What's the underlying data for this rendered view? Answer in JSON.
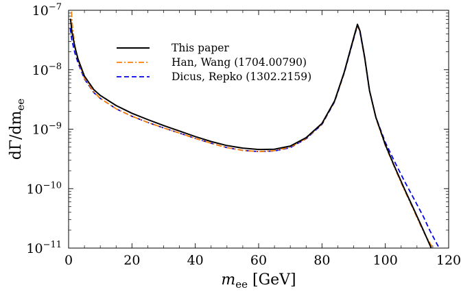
{
  "chart_data": {
    "type": "line",
    "title": "",
    "xlabel_main": "m",
    "xlabel_sub": "ee",
    "xlabel_unit": " [GeV]",
    "ylabel_main": "dΓ/dm",
    "ylabel_sub": "ee",
    "xlim": [
      0,
      120
    ],
    "ylim": [
      1e-11,
      1e-07
    ],
    "yscale": "log",
    "grid": false,
    "legend_position": "top-left",
    "x_ticks": [
      0,
      20,
      40,
      60,
      80,
      100,
      120
    ],
    "y_ticks": [
      {
        "value": 1e-11,
        "base": "10",
        "exp": "−11"
      },
      {
        "value": 1e-10,
        "base": "10",
        "exp": "−10"
      },
      {
        "value": 1e-09,
        "base": "10",
        "exp": "−9"
      },
      {
        "value": 1e-08,
        "base": "10",
        "exp": "−8"
      },
      {
        "value": 1e-07,
        "base": "10",
        "exp": "−7"
      }
    ],
    "series": [
      {
        "name": "This paper",
        "color": "#000000",
        "style": "solid",
        "points": [
          [
            0.6,
            7.2e-08
          ],
          [
            1,
            4.5e-08
          ],
          [
            2,
            2.4e-08
          ],
          [
            3,
            1.5e-08
          ],
          [
            5,
            7.8e-09
          ],
          [
            8,
            4.6e-09
          ],
          [
            10,
            3.7e-09
          ],
          [
            15,
            2.5e-09
          ],
          [
            20,
            1.85e-09
          ],
          [
            25,
            1.45e-09
          ],
          [
            30,
            1.15e-09
          ],
          [
            35,
            9.3e-10
          ],
          [
            40,
            7.5e-10
          ],
          [
            45,
            6.2e-10
          ],
          [
            50,
            5.3e-10
          ],
          [
            55,
            4.8e-10
          ],
          [
            60,
            4.55e-10
          ],
          [
            65,
            4.6e-10
          ],
          [
            70,
            5.2e-10
          ],
          [
            75,
            7.2e-10
          ],
          [
            80,
            1.25e-09
          ],
          [
            84,
            3e-09
          ],
          [
            87,
            9e-09
          ],
          [
            89,
            2.2e-08
          ],
          [
            90.5,
            4.3e-08
          ],
          [
            91.2,
            5.8e-08
          ],
          [
            92,
            4.5e-08
          ],
          [
            93.5,
            1.6e-08
          ],
          [
            95,
            4.5e-09
          ],
          [
            97,
            1.6e-09
          ],
          [
            100,
            5.5e-10
          ],
          [
            103,
            2.3e-10
          ],
          [
            106,
            1e-10
          ],
          [
            109,
            4.5e-11
          ],
          [
            112,
            2e-11
          ],
          [
            114.5,
            1e-11
          ]
        ]
      },
      {
        "name": "Han, Wang (1704.00790)",
        "color": "#ff8000",
        "style": "dashdot",
        "points": [
          [
            0.9,
            9.5e-08
          ],
          [
            1.2,
            5.5e-08
          ],
          [
            2,
            2.5e-08
          ],
          [
            3,
            1.45e-08
          ],
          [
            5,
            7.2e-09
          ],
          [
            8,
            4.2e-09
          ],
          [
            10,
            3.3e-09
          ],
          [
            15,
            2.2e-09
          ],
          [
            20,
            1.65e-09
          ],
          [
            25,
            1.3e-09
          ],
          [
            30,
            1.05e-09
          ],
          [
            35,
            8.6e-10
          ],
          [
            40,
            7e-10
          ],
          [
            45,
            5.8e-10
          ],
          [
            50,
            4.9e-10
          ],
          [
            55,
            4.4e-10
          ],
          [
            60,
            4.2e-10
          ],
          [
            65,
            4.35e-10
          ],
          [
            70,
            5e-10
          ],
          [
            75,
            7e-10
          ],
          [
            80,
            1.22e-09
          ],
          [
            84,
            2.95e-09
          ],
          [
            87,
            8.8e-09
          ],
          [
            89,
            2.15e-08
          ],
          [
            90.5,
            4.2e-08
          ],
          [
            91.2,
            5.6e-08
          ],
          [
            92,
            4.4e-08
          ],
          [
            93.5,
            1.55e-08
          ],
          [
            95,
            4.4e-09
          ],
          [
            97,
            1.55e-09
          ],
          [
            100,
            5.3e-10
          ],
          [
            103,
            2.2e-10
          ],
          [
            106,
            9.5e-11
          ],
          [
            109,
            4.3e-11
          ],
          [
            112,
            1.9e-11
          ],
          [
            115,
            1e-11
          ]
        ]
      },
      {
        "name": "Dicus, Repko (1302.2159)",
        "color": "#0000ee",
        "style": "dashed",
        "points": [
          [
            0.5,
            5e-08
          ],
          [
            1,
            3.2e-08
          ],
          [
            2,
            1.9e-08
          ],
          [
            3,
            1.3e-08
          ],
          [
            5,
            7e-09
          ],
          [
            8,
            4.1e-09
          ],
          [
            10,
            3.3e-09
          ],
          [
            15,
            2.2e-09
          ],
          [
            20,
            1.65e-09
          ],
          [
            25,
            1.3e-09
          ],
          [
            30,
            1.05e-09
          ],
          [
            35,
            8.6e-10
          ],
          [
            40,
            7e-10
          ],
          [
            45,
            5.8e-10
          ],
          [
            50,
            4.9e-10
          ],
          [
            55,
            4.4e-10
          ],
          [
            60,
            4.2e-10
          ],
          [
            65,
            4.3e-10
          ],
          [
            70,
            4.9e-10
          ],
          [
            75,
            6.9e-10
          ],
          [
            80,
            1.2e-09
          ],
          [
            84,
            2.9e-09
          ],
          [
            87,
            8.7e-09
          ],
          [
            89,
            2.1e-08
          ],
          [
            90.5,
            4.1e-08
          ],
          [
            91.2,
            5.5e-08
          ],
          [
            92,
            4.3e-08
          ],
          [
            93.5,
            1.55e-08
          ],
          [
            95,
            4.4e-09
          ],
          [
            97,
            1.6e-09
          ],
          [
            100,
            6e-10
          ],
          [
            103,
            2.8e-10
          ],
          [
            106,
            1.35e-10
          ],
          [
            109,
            6.8e-11
          ],
          [
            112,
            3.4e-11
          ],
          [
            114,
            2e-11
          ],
          [
            117,
            1e-11
          ]
        ]
      }
    ]
  }
}
